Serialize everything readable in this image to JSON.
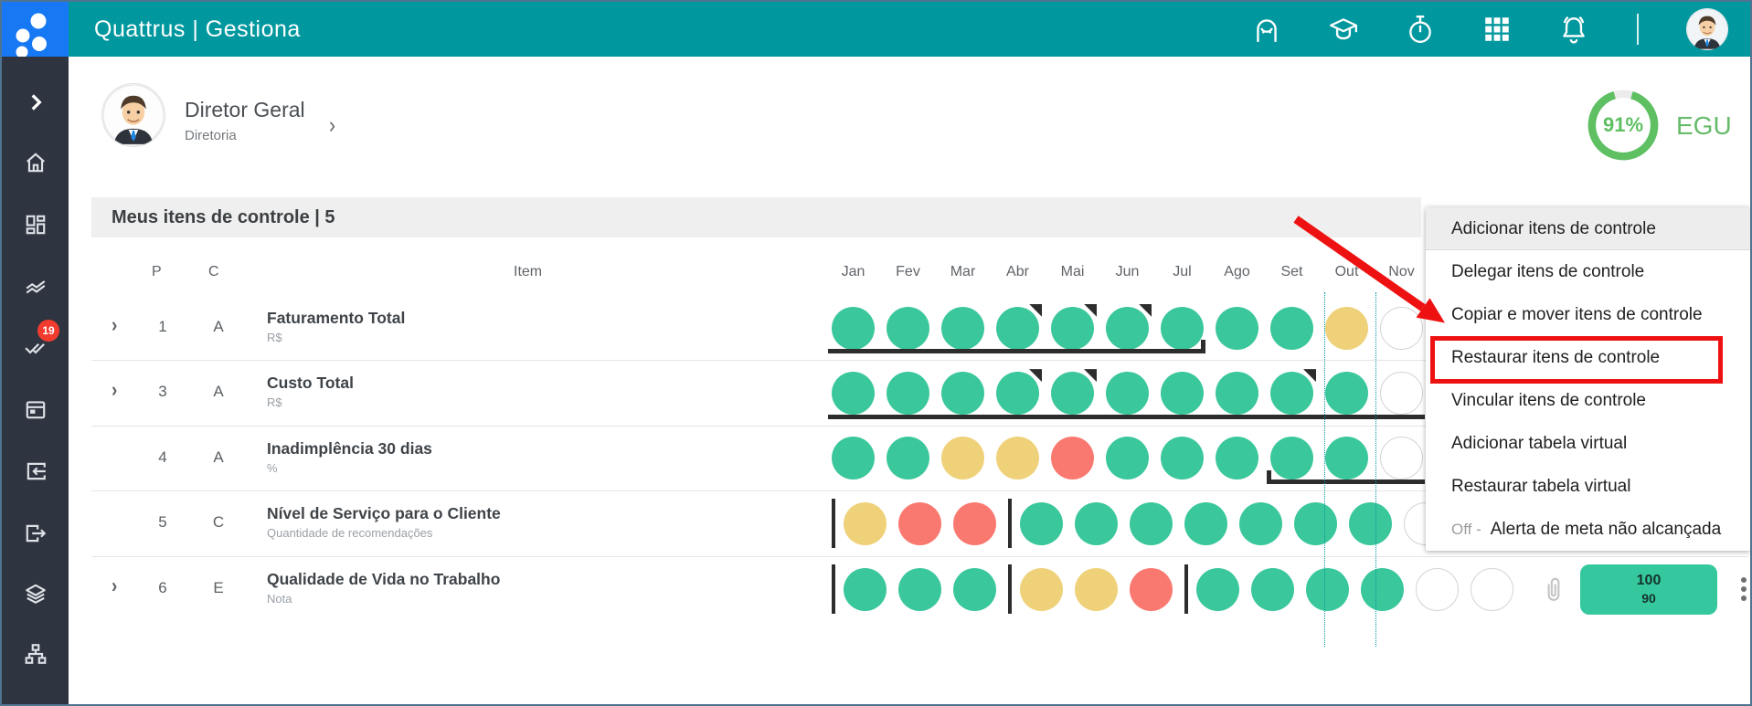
{
  "app": {
    "brand": "Quattrus | Gestiona"
  },
  "topbar": {
    "icons": [
      "assistant-face-icon",
      "graduation-cap-icon",
      "stopwatch-icon",
      "apps-grid-icon",
      "notifications-bell-icon"
    ],
    "avatar": "user-avatar"
  },
  "sidebar": {
    "icons": [
      "expand-chevron-icon",
      "home-icon",
      "dashboard-icon",
      "trending-lines-icon",
      "tasks-doublecheck-icon",
      "calendar-icon",
      "check-in-icon",
      "check-out-icon",
      "layers-icon",
      "org-chart-icon"
    ],
    "tasks_badge": "19"
  },
  "profile": {
    "name": "Diretor Geral",
    "role": "Diretoria"
  },
  "score": {
    "percent": "91%",
    "value": 91,
    "label": "EGU",
    "ring_color": "#5FBF63"
  },
  "section": {
    "title": "Meus itens de controle | 5"
  },
  "table": {
    "columns": {
      "p": "P",
      "c": "C",
      "item": "Item"
    },
    "months": [
      "Jan",
      "Fev",
      "Mar",
      "Abr",
      "Mai",
      "Jun",
      "Jul",
      "Ago",
      "Set",
      "Out",
      "Nov"
    ],
    "status_colors": {
      "ok": "#3AC79B",
      "warning": "#EFD17A",
      "bad": "#F97970",
      "empty": "#FFFFFF"
    },
    "rows": [
      {
        "expandable": true,
        "p": "1",
        "c": "A",
        "title": "Faturamento Total",
        "subtitle": "R$",
        "dots": [
          "G",
          "G",
          "G",
          "Gf",
          "Gf",
          "Gf",
          "G",
          "G",
          "G",
          "Y",
          "E"
        ],
        "accum_line": {
          "from": 0,
          "to": 6,
          "hook": "right"
        }
      },
      {
        "expandable": true,
        "p": "3",
        "c": "A",
        "title": "Custo Total",
        "subtitle": "R$",
        "dots": [
          "G",
          "G",
          "G",
          "Gf",
          "Gf",
          "G",
          "G",
          "G",
          "Gf",
          "G",
          "E"
        ],
        "accum_line": {
          "from": 0,
          "to": 10,
          "hook": "none"
        }
      },
      {
        "expandable": false,
        "p": "4",
        "c": "A",
        "title": "Inadimplência 30 dias",
        "subtitle": "%",
        "dots": [
          "G",
          "G",
          "Y",
          "Y",
          "R",
          "G",
          "G",
          "G",
          "G",
          "G",
          "E"
        ],
        "accum_line": {
          "from": 8,
          "to": 10,
          "hook": "left"
        }
      },
      {
        "expandable": false,
        "p": "5",
        "c": "C",
        "title": "Nível de Serviço para o Cliente",
        "subtitle": "Quantidade de recomendações",
        "dots": [
          "S",
          "Y",
          "R",
          "R",
          "S",
          "G",
          "G",
          "G",
          "G",
          "G",
          "G",
          "G",
          "E"
        ]
      },
      {
        "expandable": true,
        "p": "6",
        "c": "E",
        "title": "Qualidade de Vida no Trabalho",
        "subtitle": "Nota",
        "dots": [
          "S",
          "G",
          "G",
          "G",
          "S",
          "Y",
          "Y",
          "R",
          "S",
          "G",
          "G",
          "G",
          "G",
          "E",
          "E"
        ],
        "extras": {
          "attachment": true,
          "badge_top": "100",
          "badge_bottom": "90",
          "kebab": true
        }
      }
    ]
  },
  "menu": {
    "items": [
      {
        "label": "Adicionar itens de controle",
        "highlighted": true
      },
      {
        "label": "Delegar itens de controle"
      },
      {
        "label": "Copiar e mover itens de controle"
      },
      {
        "label": "Restaurar itens de controle",
        "annotated": true
      },
      {
        "label": "Vincular itens de controle"
      },
      {
        "label": "Adicionar tabela virtual"
      },
      {
        "label": "Restaurar tabela virtual"
      },
      {
        "label": "Alerta de meta não alcançada",
        "prefix": "Off -"
      }
    ]
  },
  "annotations": {
    "highlighted_menu_item": "Restaurar itens de controle",
    "arrow_color": "#EE1111"
  }
}
